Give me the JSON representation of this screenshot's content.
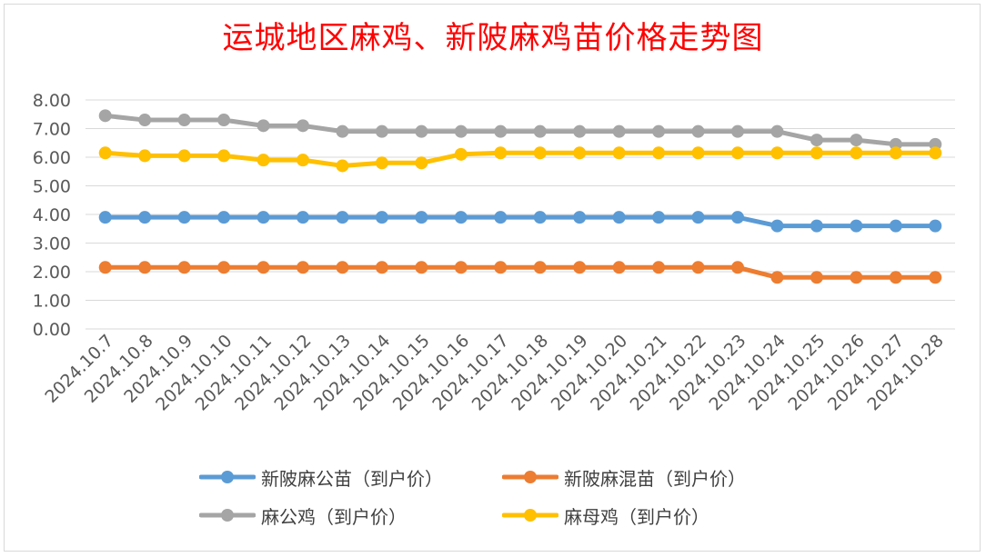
{
  "chart_data": {
    "type": "line",
    "title": "运城地区麻鸡、新陂麻鸡苗价格走势图",
    "xlabel": "",
    "ylabel": "",
    "ylim": [
      0,
      8
    ],
    "y_ticks": [
      "0.00",
      "1.00",
      "2.00",
      "3.00",
      "4.00",
      "5.00",
      "6.00",
      "7.00",
      "8.00"
    ],
    "grid": true,
    "legend_position": "bottom",
    "categories": [
      "2024.10.7",
      "2024.10.8",
      "2024.10.9",
      "2024.10.10",
      "2024.10.11",
      "2024.10.12",
      "2024.10.13",
      "2024.10.14",
      "2024.10.15",
      "2024.10.16",
      "2024.10.17",
      "2024.10.18",
      "2024.10.19",
      "2024.10.20",
      "2024.10.21",
      "2024.10.22",
      "2024.10.23",
      "2024.10.24",
      "2024.10.25",
      "2024.10.26",
      "2024.10.27",
      "2024.10.28"
    ],
    "series": [
      {
        "name": "新陂麻公苗（到户价）",
        "color": "#5b9bd5",
        "values": [
          3.9,
          3.9,
          3.9,
          3.9,
          3.9,
          3.9,
          3.9,
          3.9,
          3.9,
          3.9,
          3.9,
          3.9,
          3.9,
          3.9,
          3.9,
          3.9,
          3.9,
          3.6,
          3.6,
          3.6,
          3.6,
          3.6
        ]
      },
      {
        "name": "新陂麻混苗（到户价）",
        "color": "#ed7d31",
        "values": [
          2.15,
          2.15,
          2.15,
          2.15,
          2.15,
          2.15,
          2.15,
          2.15,
          2.15,
          2.15,
          2.15,
          2.15,
          2.15,
          2.15,
          2.15,
          2.15,
          2.15,
          1.8,
          1.8,
          1.8,
          1.8,
          1.8
        ]
      },
      {
        "name": "麻公鸡（到户价）",
        "color": "#a5a5a5",
        "values": [
          7.45,
          7.3,
          7.3,
          7.3,
          7.1,
          7.1,
          6.9,
          6.9,
          6.9,
          6.9,
          6.9,
          6.9,
          6.9,
          6.9,
          6.9,
          6.9,
          6.9,
          6.9,
          6.6,
          6.6,
          6.45,
          6.45
        ]
      },
      {
        "name": "麻母鸡（到户价）",
        "color": "#ffc000",
        "values": [
          6.15,
          6.05,
          6.05,
          6.05,
          5.9,
          5.9,
          5.7,
          5.8,
          5.8,
          6.1,
          6.15,
          6.15,
          6.15,
          6.15,
          6.15,
          6.15,
          6.15,
          6.15,
          6.15,
          6.15,
          6.15,
          6.15
        ]
      }
    ]
  }
}
